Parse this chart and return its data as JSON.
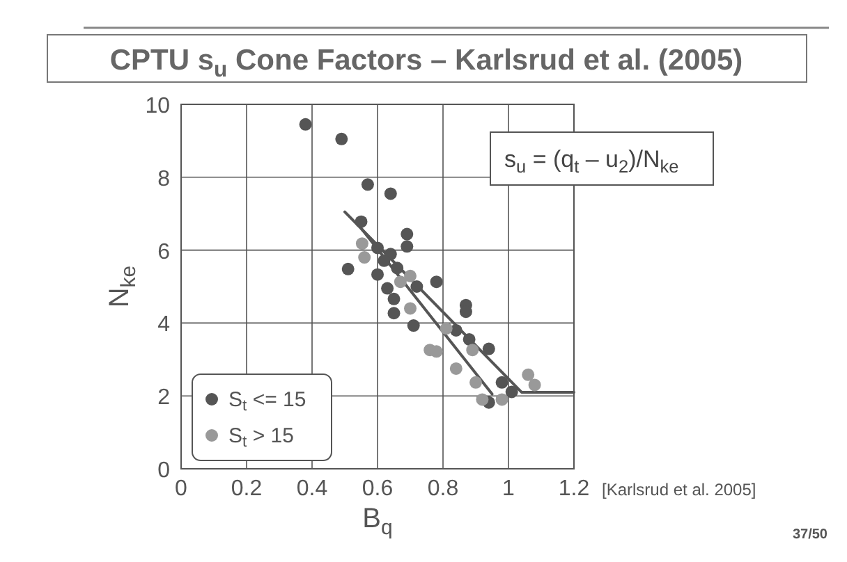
{
  "chart_data": {
    "type": "scatter",
    "title": "CPTU s$_{u}$ Cone Factors – Karlsrud et al. (2005)",
    "xlabel": "B$_{q}$",
    "ylabel": "N$_{ke}$",
    "xlim": [
      0,
      1.2
    ],
    "xticks": [
      0,
      0.2,
      0.4,
      0.6,
      0.8,
      1,
      1.2
    ],
    "ylim": [
      0,
      10
    ],
    "yticks": [
      0,
      2,
      4,
      6,
      8,
      10
    ],
    "grid": true,
    "legend": "bottom left",
    "marker": "circle",
    "annotations": [
      "s$_{u}$ = (q$_{t}$ – u$_{2}$)/N$_{ke}$",
      "[Karlsrud et al. 2005]",
      "37/50"
    ],
    "series": [
      {
        "name": "S$_{t}$ <= 15",
        "color": "#555555",
        "x": [
          0.38,
          0.49,
          0.57,
          0.64,
          0.55,
          0.69,
          0.69,
          0.51,
          0.6,
          0.64,
          0.6,
          0.62,
          0.66,
          0.78,
          0.63,
          0.72,
          0.65,
          0.65,
          0.71,
          0.87,
          0.87,
          0.84,
          0.88,
          0.94,
          0.94,
          0.98,
          1.01
        ],
        "values": [
          9.45,
          9.05,
          7.8,
          7.55,
          6.78,
          6.44,
          6.1,
          5.48,
          6.06,
          5.89,
          5.33,
          5.71,
          5.51,
          5.13,
          4.95,
          5.0,
          4.66,
          4.27,
          3.93,
          4.49,
          4.31,
          3.8,
          3.55,
          3.29,
          1.82,
          2.37,
          2.11
        ]
      },
      {
        "name": "S$_{t}$ > 15",
        "color": "#999999",
        "x": [
          0.553,
          0.56,
          0.7,
          0.67,
          0.7,
          0.81,
          0.76,
          0.78,
          0.89,
          0.84,
          0.9,
          1.06,
          1.08,
          0.92,
          0.98
        ],
        "values": [
          6.18,
          5.8,
          5.29,
          5.13,
          4.4,
          3.85,
          3.26,
          3.22,
          3.26,
          2.75,
          2.37,
          2.58,
          2.3,
          1.9,
          1.9
        ]
      },
      {
        "type": "line",
        "color": "#555555",
        "marker": "none",
        "x": [
          0.5,
          1.04,
          1.2
        ],
        "values": [
          7.05,
          2.1,
          2.1
        ]
      },
      {
        "type": "line",
        "color": "#555555",
        "marker": "none",
        "x": [
          0.55,
          0.95
        ],
        "values": [
          6.6,
          2.05
        ]
      }
    ]
  }
}
